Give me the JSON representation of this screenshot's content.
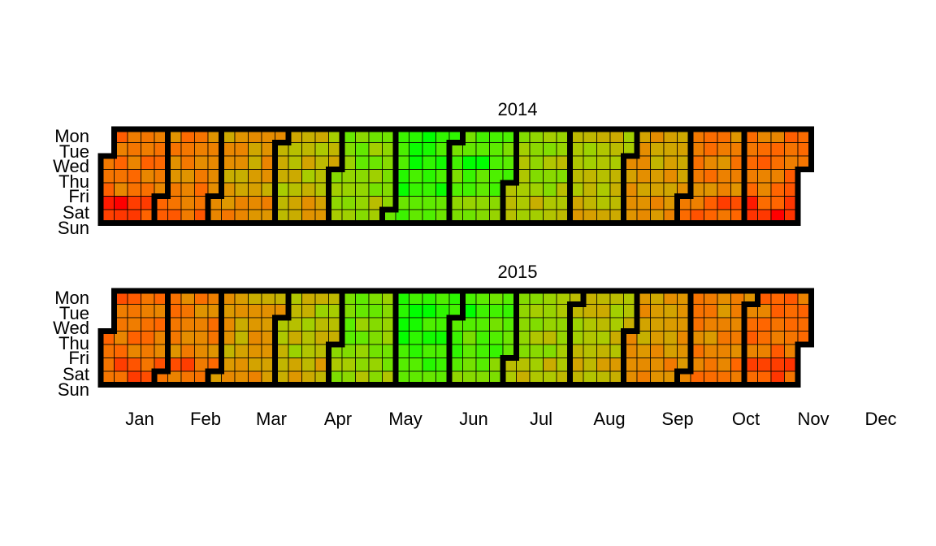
{
  "chart_data": {
    "type": "heatmap",
    "subtype": "calendar",
    "week_start": "Mon",
    "day_labels": [
      "Mon",
      "Tue",
      "Wed",
      "Thu",
      "Fri",
      "Sat",
      "Sun"
    ],
    "month_labels": [
      "Jan",
      "Feb",
      "Mar",
      "Apr",
      "May",
      "Jun",
      "Jul",
      "Aug",
      "Sep",
      "Oct",
      "Nov",
      "Dec"
    ],
    "color_scale": [
      "#ff0000",
      "#ff6600",
      "#dd9900",
      "#aacc00",
      "#55ee00",
      "#00ff00"
    ],
    "grid": true,
    "legend": "none",
    "note_values": "values are approximate relative intensities read from cell colors (0 = red, 1 = green)",
    "panels": [
      {
        "title": "2014",
        "year": 2014,
        "monthly_base": [
          0.25,
          0.3,
          0.4,
          0.52,
          0.7,
          0.9,
          0.78,
          0.62,
          0.55,
          0.42,
          0.3,
          0.25
        ],
        "highlights": [
          {
            "date": "2014-01-04",
            "value": 0.05
          },
          {
            "date": "2014-01-11",
            "value": 0.0
          },
          {
            "date": "2014-01-18",
            "value": 0.12
          },
          {
            "date": "2014-12-06",
            "value": 0.05
          },
          {
            "date": "2014-12-07",
            "value": 0.1
          },
          {
            "date": "2014-12-21",
            "value": 0.0
          },
          {
            "date": "2014-11-22",
            "value": 0.12
          },
          {
            "date": "2014-11-29",
            "value": 0.15
          },
          {
            "date": "2014-06-16",
            "value": 1.0
          },
          {
            "date": "2014-07-09",
            "value": 1.0
          },
          {
            "date": "2014-07-16",
            "value": 1.0
          }
        ]
      },
      {
        "title": "2015",
        "year": 2015,
        "monthly_base": [
          0.25,
          0.3,
          0.42,
          0.55,
          0.72,
          0.9,
          0.8,
          0.62,
          0.55,
          0.4,
          0.32,
          0.25
        ],
        "highlights": [
          {
            "date": "2015-01-05",
            "value": 0.15
          },
          {
            "date": "2015-01-10",
            "value": 0.12
          },
          {
            "date": "2015-02-07",
            "value": 0.15
          },
          {
            "date": "2015-02-14",
            "value": 0.12
          },
          {
            "date": "2015-12-05",
            "value": 0.12
          },
          {
            "date": "2015-12-19",
            "value": 0.12
          },
          {
            "date": "2015-12-26",
            "value": 0.1
          },
          {
            "date": "2015-06-09",
            "value": 1.0
          },
          {
            "date": "2015-06-16",
            "value": 1.0
          },
          {
            "date": "2015-07-07",
            "value": 1.0
          }
        ]
      }
    ]
  }
}
